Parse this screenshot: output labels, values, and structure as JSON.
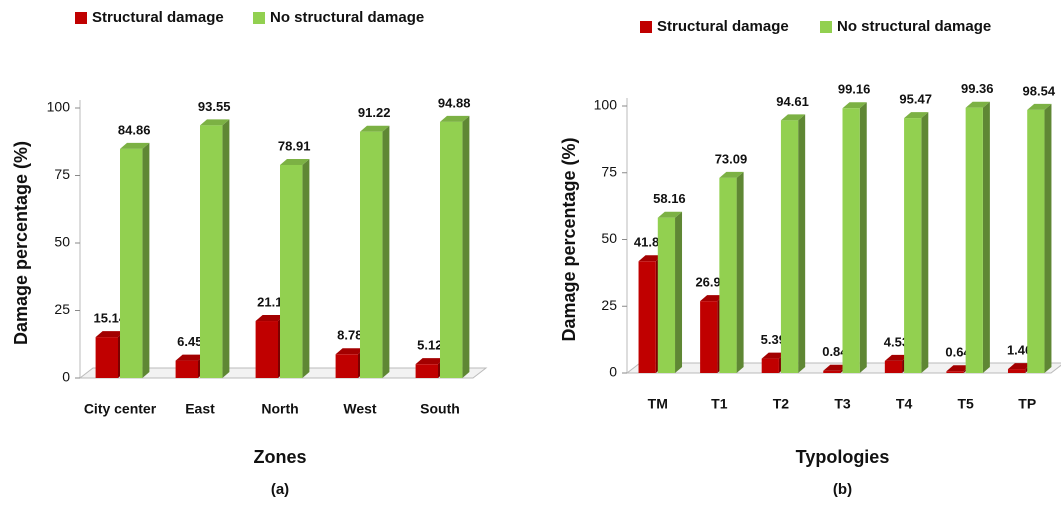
{
  "chart_data": [
    {
      "type": "bar",
      "caption": "(a)",
      "xlabel": "Zones",
      "ylabel": "Damage  percentage  (%)",
      "categories": [
        "City center",
        "East",
        "North",
        "West",
        "South"
      ],
      "series": [
        {
          "name": "Structural damage",
          "color": "#c00000",
          "values": [
            15.14,
            6.45,
            21.1,
            8.78,
            5.12
          ]
        },
        {
          "name": "No structural damage",
          "color": "#92d050",
          "values": [
            84.86,
            93.55,
            78.91,
            91.22,
            94.88
          ]
        }
      ],
      "ylim": [
        0,
        100
      ],
      "yticks": [
        0,
        25,
        50,
        75,
        100
      ],
      "legend": "top"
    },
    {
      "type": "bar",
      "caption": "(b)",
      "xlabel": "Typologies",
      "ylabel": "Damage percentage (%)",
      "categories": [
        "TM",
        "T1",
        "T2",
        "T3",
        "T4",
        "T5",
        "TP"
      ],
      "series": [
        {
          "name": "Structural damage",
          "color": "#c00000",
          "values": [
            41.84,
            26.91,
            5.39,
            0.84,
            4.53,
            0.64,
            1.46
          ]
        },
        {
          "name": "No structural damage",
          "color": "#92d050",
          "values": [
            58.16,
            73.09,
            94.61,
            99.16,
            95.47,
            99.36,
            98.54
          ]
        }
      ],
      "ylim": [
        0,
        100
      ],
      "yticks": [
        0,
        25,
        50,
        75,
        100
      ],
      "legend": "top"
    }
  ]
}
